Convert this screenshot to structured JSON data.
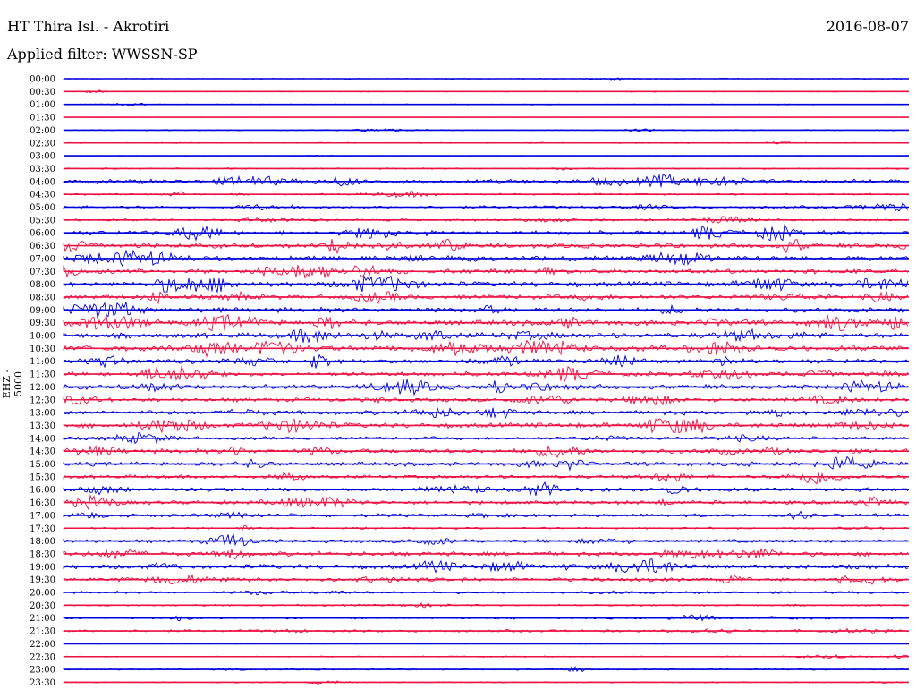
{
  "header": {
    "station": "HT Thira Isl. - Akrotiri",
    "date": "2016-08-07",
    "filter": "Applied filter: WWSSN-SP"
  },
  "chart_data": {
    "type": "line",
    "title": "HT Thira Isl. - Akrotiri",
    "ylabel": "EHZ - 5000",
    "colors": {
      "even": "#0000dd",
      "odd": "#ee1144"
    },
    "rows": [
      {
        "time": "00:00",
        "amp": 0.6
      },
      {
        "time": "00:30",
        "amp": 0.7
      },
      {
        "time": "01:00",
        "amp": 0.7
      },
      {
        "time": "01:30",
        "amp": 0.3
      },
      {
        "time": "02:00",
        "amp": 0.8
      },
      {
        "time": "02:30",
        "amp": 0.7
      },
      {
        "time": "03:00",
        "amp": 0.3
      },
      {
        "time": "03:30",
        "amp": 1.0
      },
      {
        "time": "04:00",
        "amp": 3.0
      },
      {
        "time": "04:30",
        "amp": 1.2
      },
      {
        "time": "05:00",
        "amp": 1.8
      },
      {
        "time": "05:30",
        "amp": 1.5
      },
      {
        "time": "06:00",
        "amp": 2.8
      },
      {
        "time": "06:30",
        "amp": 3.2
      },
      {
        "time": "07:00",
        "amp": 3.0
      },
      {
        "time": "07:30",
        "amp": 3.0
      },
      {
        "time": "08:00",
        "amp": 3.4
      },
      {
        "time": "08:30",
        "amp": 3.0
      },
      {
        "time": "09:00",
        "amp": 3.2
      },
      {
        "time": "09:30",
        "amp": 3.6
      },
      {
        "time": "10:00",
        "amp": 3.4
      },
      {
        "time": "10:30",
        "amp": 3.6
      },
      {
        "time": "11:00",
        "amp": 3.0
      },
      {
        "time": "11:30",
        "amp": 2.8
      },
      {
        "time": "12:00",
        "amp": 3.0
      },
      {
        "time": "12:30",
        "amp": 2.6
      },
      {
        "time": "13:00",
        "amp": 2.8
      },
      {
        "time": "13:30",
        "amp": 3.2
      },
      {
        "time": "14:00",
        "amp": 2.0
      },
      {
        "time": "14:30",
        "amp": 3.0
      },
      {
        "time": "15:00",
        "amp": 2.6
      },
      {
        "time": "15:30",
        "amp": 2.4
      },
      {
        "time": "16:00",
        "amp": 2.6
      },
      {
        "time": "16:30",
        "amp": 2.6
      },
      {
        "time": "17:00",
        "amp": 2.2
      },
      {
        "time": "17:30",
        "amp": 1.2
      },
      {
        "time": "18:00",
        "amp": 2.2
      },
      {
        "time": "18:30",
        "amp": 3.0
      },
      {
        "time": "19:00",
        "amp": 3.0
      },
      {
        "time": "19:30",
        "amp": 2.6
      },
      {
        "time": "20:00",
        "amp": 1.6
      },
      {
        "time": "20:30",
        "amp": 1.2
      },
      {
        "time": "21:00",
        "amp": 1.4
      },
      {
        "time": "21:30",
        "amp": 1.6
      },
      {
        "time": "22:00",
        "amp": 0.6
      },
      {
        "time": "22:30",
        "amp": 0.8
      },
      {
        "time": "23:00",
        "amp": 1.0
      },
      {
        "time": "23:30",
        "amp": 0.8
      }
    ]
  }
}
